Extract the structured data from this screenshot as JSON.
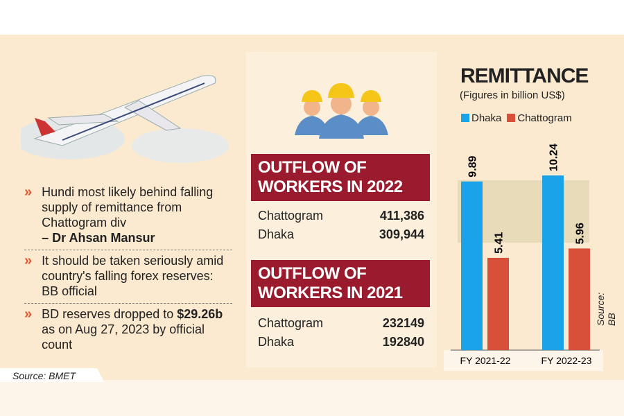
{
  "bullets": [
    {
      "text": "Hundi most likely behind falling supply of remittance from Chattogram div",
      "bold": "– Dr Ahsan Mansur"
    },
    {
      "text": "It should be taken seriously amid country's falling forex reserves: BB official"
    },
    {
      "pre": "BD reserves dropped to ",
      "bold": "$29.26b",
      "post": " as on Aug 27, 2023 by official count"
    }
  ],
  "source_left": "Source: BMET",
  "outflow": [
    {
      "title": "OUTFLOW OF WORKERS IN 2022",
      "rows": [
        {
          "label": "Chattogram",
          "value": "411,386"
        },
        {
          "label": "Dhaka",
          "value": "309,944"
        }
      ]
    },
    {
      "title": "OUTFLOW OF WORKERS IN 2021",
      "rows": [
        {
          "label": "Chattogram",
          "value": "232149"
        },
        {
          "label": "Dhaka",
          "value": "192840"
        }
      ]
    }
  ],
  "colors": {
    "dhaka": "#1aa3e8",
    "chattogram": "#d9503a",
    "header": "#991b2d"
  },
  "chart_data": {
    "type": "bar",
    "title": "REMITTANCE",
    "subtitle": "(Figures in billion US$)",
    "categories": [
      "FY 2021-22",
      "FY 2022-23"
    ],
    "series": [
      {
        "name": "Dhaka",
        "values": [
          9.89,
          10.24
        ]
      },
      {
        "name": "Chattogram",
        "values": [
          5.41,
          5.96
        ]
      }
    ],
    "data_labels": [
      [
        "9.89",
        "10.24"
      ],
      [
        "5.41",
        "5.96"
      ]
    ],
    "legend": "top-left",
    "grid": false,
    "source": "Source: BB"
  }
}
